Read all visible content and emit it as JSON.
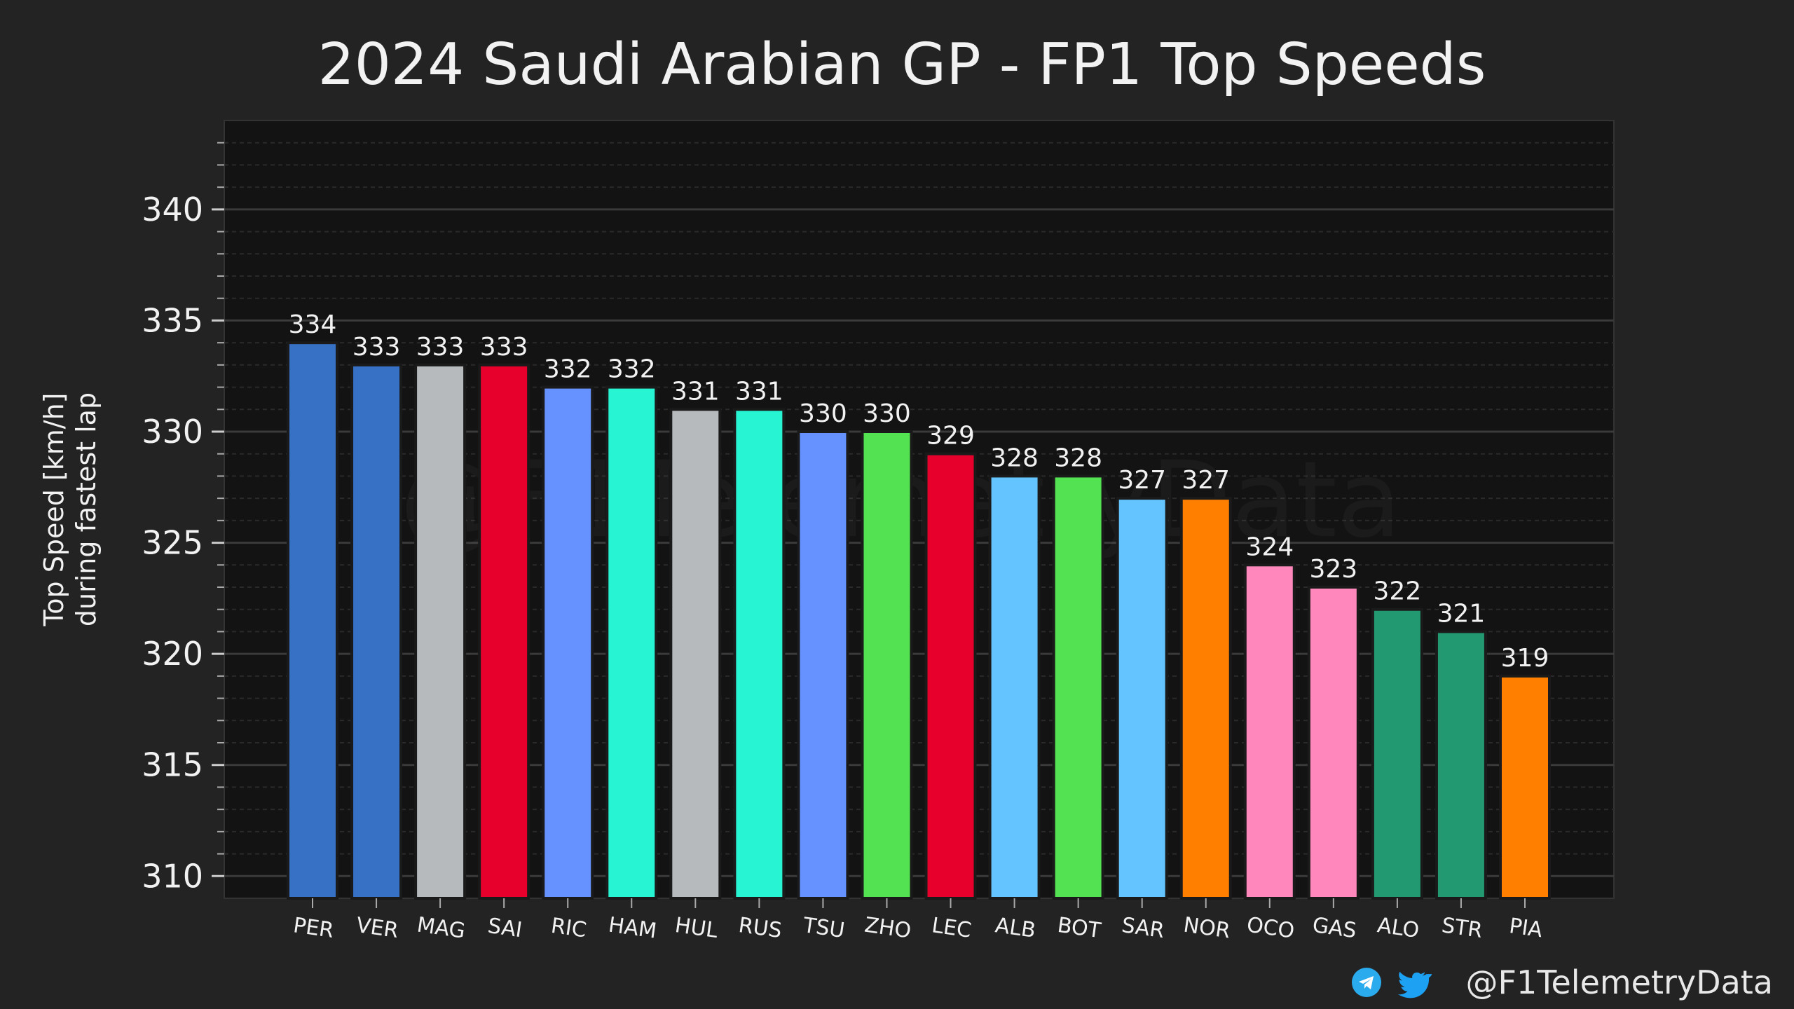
{
  "chart_data": {
    "type": "bar",
    "title": "2024 Saudi Arabian GP - FP1 Top Speeds",
    "xlabel": "",
    "ylabel": "Top Speed [km/h]",
    "ylabel_line2": "during fastest lap",
    "ylim": [
      309,
      344
    ],
    "yticks": [
      310,
      315,
      320,
      325,
      330,
      335,
      340
    ],
    "grid": true,
    "categories": [
      "PER",
      "VER",
      "MAG",
      "SAI",
      "RIC",
      "HAM",
      "HUL",
      "RUS",
      "TSU",
      "ZHO",
      "LEC",
      "ALB",
      "BOT",
      "SAR",
      "NOR",
      "OCO",
      "GAS",
      "ALO",
      "STR",
      "PIA"
    ],
    "values": [
      334,
      333,
      333,
      333,
      332,
      332,
      331,
      331,
      330,
      330,
      329,
      328,
      328,
      327,
      327,
      324,
      323,
      322,
      321,
      319
    ],
    "colors": [
      "#3671C6",
      "#3671C6",
      "#B6BABD",
      "#E8002D",
      "#6692FF",
      "#27F4D2",
      "#B6BABD",
      "#27F4D2",
      "#6692FF",
      "#52E252",
      "#E8002D",
      "#64C4FF",
      "#52E252",
      "#64C4FF",
      "#FF8000",
      "#FF87BC",
      "#FF87BC",
      "#229971",
      "#229971",
      "#FF8000"
    ]
  },
  "watermark": "@F1TelemetryData",
  "footer": {
    "handle": "@F1TelemetryData",
    "icons": [
      "telegram-icon",
      "twitter-icon"
    ]
  },
  "colors": {
    "background": "#232323",
    "plot_background": "#131313",
    "grid_major": "#3a3a3a",
    "grid_minor": "#2a2a2a",
    "text": "#f2f2f2",
    "telegram": "#2AABEE",
    "twitter": "#1DA1F2"
  }
}
